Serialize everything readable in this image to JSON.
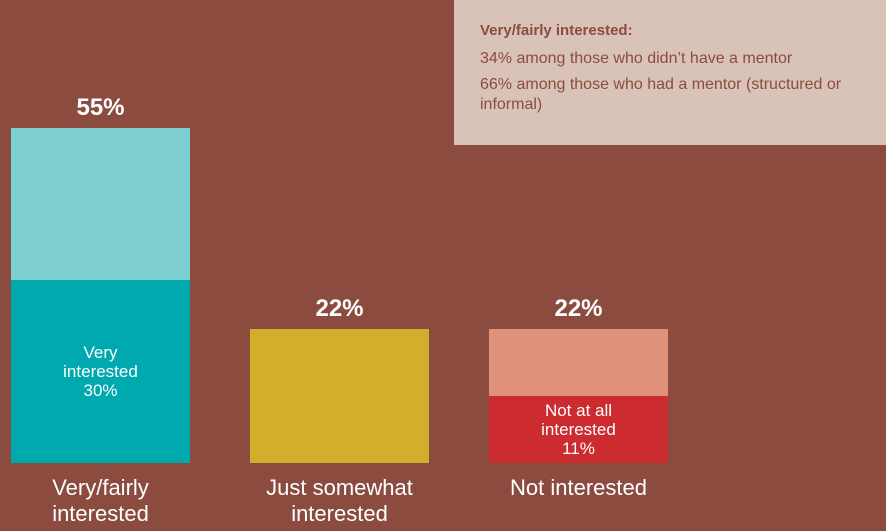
{
  "chart_data": {
    "type": "bar",
    "bars": [
      {
        "category": "Very/fairly interested",
        "value": 55,
        "value_label": "55%",
        "color": "#7ecfd0",
        "segment": {
          "name": "Very interested",
          "value": 30,
          "value_label": "30%",
          "color": "#00a9ae"
        }
      },
      {
        "category": "Just somewhat interested",
        "value": 22,
        "value_label": "22%",
        "color": "#d3ae2c"
      },
      {
        "category": "Not interested",
        "value": 22,
        "value_label": "22%",
        "color": "#e0917a",
        "segment": {
          "name": "Not at all interested",
          "value": 11,
          "value_label": "11%",
          "color": "#cc2b2f"
        }
      }
    ]
  },
  "note": {
    "title": "Very/fairly interested:",
    "lines": [
      "34% among those who didn’t have a mentor",
      "66% among those who had a mentor (structured or informal)"
    ]
  }
}
